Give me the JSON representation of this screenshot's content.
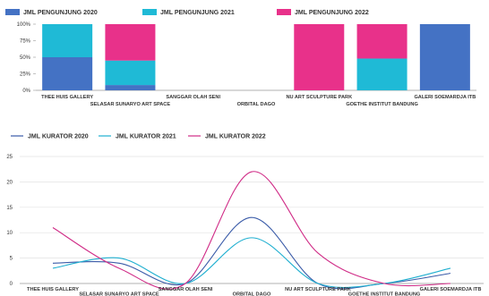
{
  "chart_data": [
    {
      "type": "bar",
      "stacked": "percent",
      "categories": [
        "THEE HUIS GALLERY",
        "SELASAR SUNARYO ART SPACE",
        "SANGGAR OLAH SENI",
        "ORBITAL DAGO",
        "NU ART SCULPTURE PARK",
        "GOETHE INSTITUT BANDUNG",
        "GALERI SOEMARDJA ITB"
      ],
      "series": [
        {
          "name": "JML PENGUNJUNG 2020",
          "color": "#4472C4",
          "values": [
            50,
            8,
            0,
            0,
            0,
            0,
            100
          ]
        },
        {
          "name": "JML PENGUNJUNG 2021",
          "color": "#1FBAD6",
          "values": [
            50,
            37,
            0,
            0,
            0,
            48,
            0
          ]
        },
        {
          "name": "JML PENGUNJUNG 2022",
          "color": "#E8318A",
          "values": [
            0,
            55,
            0,
            0,
            100,
            52,
            0
          ]
        }
      ],
      "ylim": [
        0,
        100
      ],
      "yticks": [
        "0%",
        "25%",
        "50%",
        "75%",
        "100%"
      ],
      "legend": "top-left"
    },
    {
      "type": "line",
      "categories": [
        "THEE HUIS GALLERY",
        "SELASAR SUNARYO ART SPACE",
        "SANGGAR OLAH SENI",
        "ORBITAL DAGO",
        "NU ART SCULPTURE PARK",
        "GOETHE INSTITUT BANDUNG",
        "GALERI SOEMARDJA ITB"
      ],
      "series": [
        {
          "name": "JML KURATOR 2020",
          "color": "#3A5BA8",
          "values": [
            4,
            4,
            0,
            13,
            0,
            0,
            2
          ]
        },
        {
          "name": "JML KURATOR 2021",
          "color": "#1FAFD0",
          "values": [
            3,
            5,
            0,
            9,
            0,
            0,
            3
          ]
        },
        {
          "name": "JML KURATOR 2022",
          "color": "#D02C87",
          "values": [
            11,
            3,
            0,
            22,
            6,
            0,
            0
          ]
        }
      ],
      "ylim": [
        0,
        25
      ],
      "yticks": [
        "0",
        "5",
        "10",
        "15",
        "20",
        "25"
      ],
      "grid": true,
      "smooth": true,
      "legend": "top-left"
    }
  ]
}
